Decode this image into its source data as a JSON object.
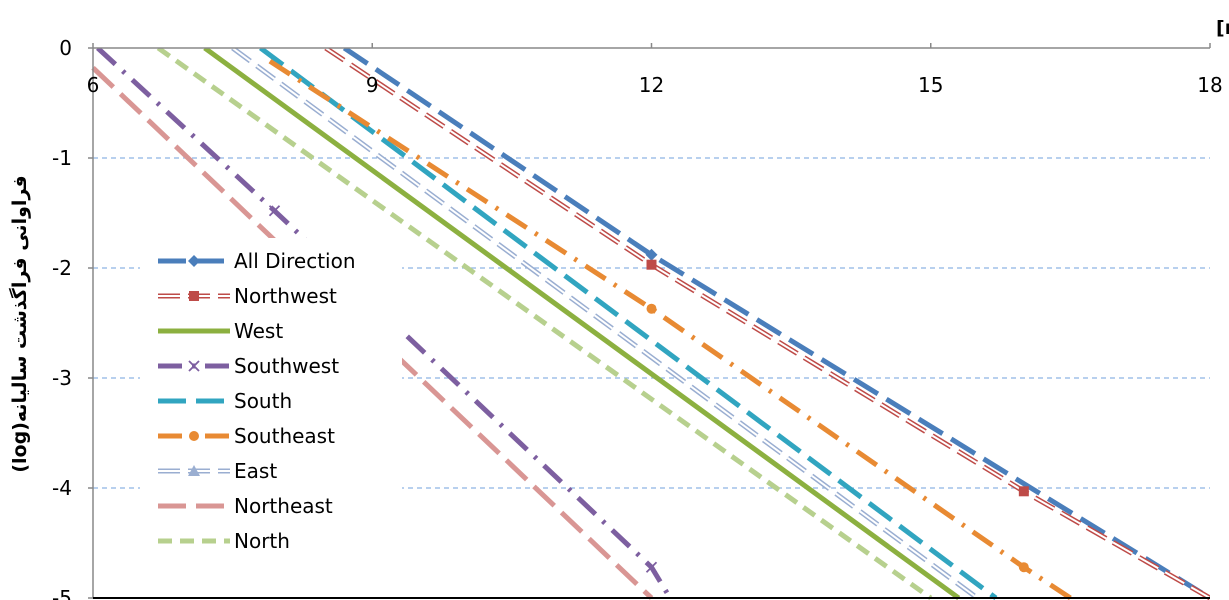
{
  "chart_data": {
    "type": "line",
    "xlabel": "ارتفاع موج  [m]",
    "ylabel": "فراوانی فراگذشت سالیانه(log)",
    "xlim": [
      6,
      18
    ],
    "ylim": [
      -5,
      0
    ],
    "x_axis_position": "top",
    "xticks": [
      "6",
      "9",
      "12",
      "15",
      "18"
    ],
    "yticks": [
      "0",
      "-1",
      "-2",
      "-3",
      "-4",
      "-5"
    ],
    "grid": "horizontal dashed",
    "legend_position": "left",
    "series": [
      {
        "name": "All Direction",
        "color": "#4a7ebb",
        "dash": "long-dash",
        "marker": "diamond",
        "x": [
          8.7,
          12.0,
          18.0
        ],
        "y": [
          0,
          -1.88,
          -5.0
        ]
      },
      {
        "name": "Northwest",
        "color": "#be4b48",
        "dash": "hollow-dash",
        "marker": "square",
        "x": [
          8.5,
          12.0,
          16.0,
          18.0
        ],
        "y": [
          0,
          -1.97,
          -4.03,
          -5.0
        ]
      },
      {
        "name": "West",
        "color": "#8cb040",
        "dash": "solid",
        "marker": "none",
        "x": [
          7.2,
          15.3
        ],
        "y": [
          0,
          -5.0
        ]
      },
      {
        "name": "Southwest",
        "color": "#7d5fa0",
        "dash": "dash-dot",
        "marker": "x",
        "x": [
          6.05,
          7.95,
          12.0,
          12.2
        ],
        "y": [
          0,
          -1.48,
          -4.72,
          -5.0
        ]
      },
      {
        "name": "South",
        "color": "#31a5c0",
        "dash": "long-dash",
        "marker": "none",
        "x": [
          7.8,
          15.7
        ],
        "y": [
          0,
          -5.0
        ]
      },
      {
        "name": "Southeast",
        "color": "#e88a33",
        "dash": "dash-dot",
        "marker": "circle",
        "x": [
          7.9,
          12.0,
          16.0,
          16.5
        ],
        "y": [
          -0.12,
          -2.37,
          -4.72,
          -5.0
        ]
      },
      {
        "name": "East",
        "color": "#9aaed1",
        "dash": "hollow-dash",
        "marker": "triangle",
        "x": [
          7.5,
          15.5
        ],
        "y": [
          0,
          -5.0
        ]
      },
      {
        "name": "Northeast",
        "color": "#d99694",
        "dash": "long-dash",
        "marker": "none",
        "x": [
          6.0,
          12.0
        ],
        "y": [
          -0.18,
          -5.0
        ]
      },
      {
        "name": "North",
        "color": "#b7d08e",
        "dash": "short-dash",
        "marker": "none",
        "x": [
          6.7,
          15.0
        ],
        "y": [
          0,
          -5.0
        ]
      }
    ]
  }
}
